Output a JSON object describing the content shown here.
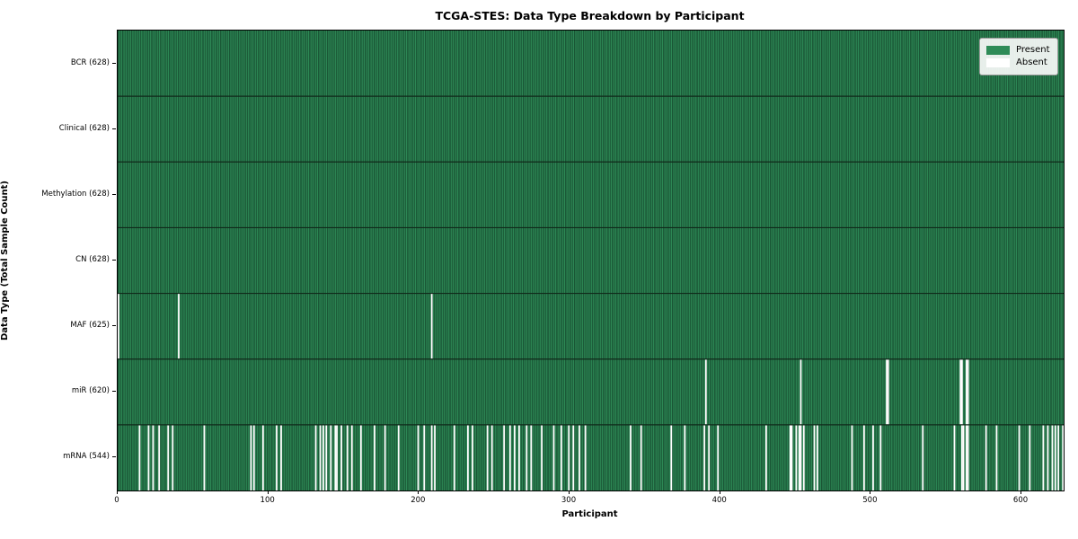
{
  "chart_data": {
    "type": "heatmap",
    "title": "TCGA-STES: Data Type Breakdown by Participant",
    "xlabel": "Participant",
    "ylabel": "Data Type (Total Sample Count)",
    "x_ticks": [
      0,
      100,
      200,
      300,
      400,
      500,
      600
    ],
    "x_max": 628,
    "total_participants": 628,
    "legend": [
      {
        "label": "Present",
        "color": "#2e8b57"
      },
      {
        "label": "Absent",
        "color": "#ffffff"
      }
    ],
    "colors": {
      "present": "#2e8b57",
      "absent": "#ffffff",
      "bar_edge": "#0d3520",
      "row_separator": "#10291a",
      "spine": "#000000",
      "legend_bg": "#f4f7f4",
      "legend_border": "#9a9a9a"
    },
    "rows": [
      {
        "name": "BCR",
        "label": "BCR (628)",
        "present_count": 628,
        "absent_count": 0,
        "absent": []
      },
      {
        "name": "Clinical",
        "label": "Clinical (628)",
        "present_count": 628,
        "absent_count": 0,
        "absent": []
      },
      {
        "name": "Methylation",
        "label": "Methylation (628)",
        "present_count": 628,
        "absent_count": 0,
        "absent": []
      },
      {
        "name": "CN",
        "label": "CN (628)",
        "present_count": 628,
        "absent_count": 0,
        "absent": []
      },
      {
        "name": "MAF",
        "label": "MAF (625)",
        "present_count": 625,
        "absent_count": 3,
        "absent": [
          0,
          40,
          208
        ]
      },
      {
        "name": "miR",
        "label": "miR (620)",
        "present_count": 620,
        "absent_count": 8,
        "absent": [
          390,
          453,
          510,
          511,
          559,
          560,
          563,
          564
        ]
      },
      {
        "name": "mRNA",
        "label": "mRNA (544)",
        "present_count": 544,
        "absent_count": 84,
        "absent": [
          14,
          20,
          23,
          27,
          33,
          36,
          57,
          88,
          90,
          96,
          105,
          108,
          131,
          134,
          136,
          138,
          141,
          144,
          145,
          148,
          152,
          155,
          161,
          170,
          177,
          186,
          199,
          203,
          208,
          210,
          223,
          232,
          235,
          245,
          248,
          256,
          260,
          263,
          266,
          271,
          274,
          281,
          289,
          294,
          299,
          302,
          306,
          310,
          340,
          347,
          367,
          376,
          389,
          392,
          398,
          430,
          446,
          447,
          450,
          452,
          453,
          455,
          462,
          464,
          487,
          495,
          501,
          506,
          534,
          555,
          560,
          561,
          563,
          564,
          576,
          583,
          598,
          605,
          614,
          617,
          620,
          622,
          624,
          627
        ]
      }
    ]
  }
}
